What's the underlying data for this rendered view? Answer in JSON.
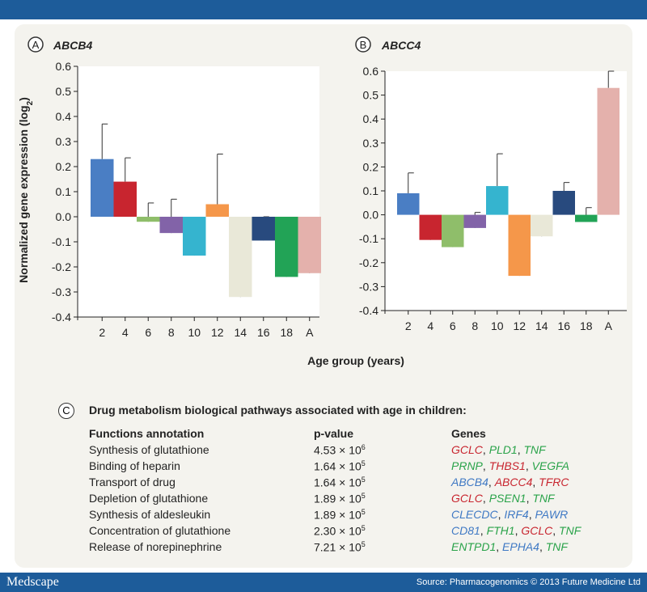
{
  "footer": {
    "brand": "Medscape",
    "source": "Source: Pharmacogenomics © 2013 Future Medicine Ltd"
  },
  "colors": {
    "header_bar": "#1d5c9a",
    "panel_bg": "#f4f3ee",
    "bars": [
      "#4a7ec4",
      "#c8252f",
      "#8fbe6a",
      "#8263a8",
      "#35b4cf",
      "#f5974a",
      "#e9e8d8",
      "#284a7e",
      "#22a356",
      "#e4b1ac"
    ],
    "gene_green": "#2aa34a",
    "gene_red": "#c8252f",
    "gene_blue": "#3f79c4"
  },
  "shared": {
    "ylabel": "Normalized gene expression (log",
    "ylabel_sub": "2",
    "ylabel_close": ")",
    "xlabel": "Age group (years)"
  },
  "chart_data": [
    {
      "type": "bar",
      "panel": "A",
      "title": "ABCB4",
      "categories": [
        "2",
        "4",
        "6",
        "8",
        "10",
        "12",
        "14",
        "16",
        "18",
        "A"
      ],
      "values": [
        0.23,
        0.14,
        -0.02,
        -0.065,
        -0.155,
        0.05,
        -0.32,
        -0.095,
        -0.24,
        -0.225
      ],
      "error": [
        0.14,
        0.095,
        0.075,
        0.135,
        0.095,
        0.2,
        0.1,
        0.095,
        0.135,
        0.165
      ],
      "ylim": [
        -0.4,
        0.6
      ],
      "yticks": [
        "-0.4",
        "-0.3",
        "-0.2",
        "-0.1",
        "0.0",
        "0.1",
        "0.2",
        "0.3",
        "0.4",
        "0.5",
        "0.6"
      ],
      "ytick_values": [
        -0.4,
        -0.3,
        -0.2,
        -0.1,
        0.0,
        0.1,
        0.2,
        0.3,
        0.4,
        0.5,
        0.6
      ]
    },
    {
      "type": "bar",
      "panel": "B",
      "title": "ABCC4",
      "categories": [
        "2",
        "4",
        "6",
        "8",
        "10",
        "12",
        "14",
        "16",
        "18",
        "A"
      ],
      "values": [
        0.09,
        -0.105,
        -0.135,
        -0.055,
        0.12,
        -0.255,
        -0.09,
        0.1,
        -0.03,
        0.53
      ],
      "error": [
        0.085,
        0.085,
        0.09,
        0.065,
        0.135,
        0.12,
        0.06,
        0.035,
        0.06,
        0.07
      ],
      "ylim": [
        -0.4,
        0.6
      ],
      "yticks": [
        "-0.4",
        "-0.3",
        "-0.2",
        "-0.1",
        "0.0",
        "0.1",
        "0.2",
        "0.3",
        "0.4",
        "0.5",
        "0.6"
      ],
      "ytick_values": [
        -0.4,
        -0.3,
        -0.2,
        -0.1,
        0.0,
        0.1,
        0.2,
        0.3,
        0.4,
        0.5,
        0.6
      ]
    }
  ],
  "table": {
    "label": "C",
    "title": "Drug metabolism biological pathways associated with age in children:",
    "headers": [
      "Functions annotation",
      "p-value",
      "Genes"
    ],
    "rows": [
      {
        "function": "Synthesis of glutathione",
        "pvalue": "4.53 × 10",
        "exp": "6",
        "genes": [
          {
            "name": "GCLC",
            "color": "red"
          },
          {
            "name": "PLD1",
            "color": "green"
          },
          {
            "name": "TNF",
            "color": "green"
          }
        ]
      },
      {
        "function": "Binding of heparin",
        "pvalue": "1.64 × 10",
        "exp": "5",
        "genes": [
          {
            "name": "PRNP",
            "color": "green"
          },
          {
            "name": "THBS1",
            "color": "red"
          },
          {
            "name": "VEGFA",
            "color": "green"
          }
        ]
      },
      {
        "function": "Transport of drug",
        "pvalue": "1.64 × 10",
        "exp": "5",
        "genes": [
          {
            "name": "ABCB4",
            "color": "blue"
          },
          {
            "name": "ABCC4",
            "color": "red"
          },
          {
            "name": "TFRC",
            "color": "red"
          }
        ]
      },
      {
        "function": "Depletion of glutathione",
        "pvalue": "1.89 × 10",
        "exp": "5",
        "genes": [
          {
            "name": "GCLC",
            "color": "red"
          },
          {
            "name": "PSEN1",
            "color": "green"
          },
          {
            "name": "TNF",
            "color": "green"
          }
        ]
      },
      {
        "function": "Synthesis of aldesleukin",
        "pvalue": "1.89 × 10",
        "exp": "5",
        "genes": [
          {
            "name": "CLECDC",
            "color": "blue"
          },
          {
            "name": "IRF4",
            "color": "blue"
          },
          {
            "name": "PAWR",
            "color": "blue"
          }
        ]
      },
      {
        "function": "Concentration of glutathione",
        "pvalue": "2.30 × 10",
        "exp": "5",
        "genes": [
          {
            "name": "CD81",
            "color": "blue"
          },
          {
            "name": "FTH1",
            "color": "green"
          },
          {
            "name": "GCLC",
            "color": "red"
          },
          {
            "name": "TNF",
            "color": "green"
          }
        ]
      },
      {
        "function": "Release of norepinephrine",
        "pvalue": "7.21 × 10",
        "exp": "5",
        "genes": [
          {
            "name": "ENTPD1",
            "color": "green"
          },
          {
            "name": "EPHA4",
            "color": "blue"
          },
          {
            "name": "TNF",
            "color": "green"
          }
        ]
      }
    ]
  }
}
